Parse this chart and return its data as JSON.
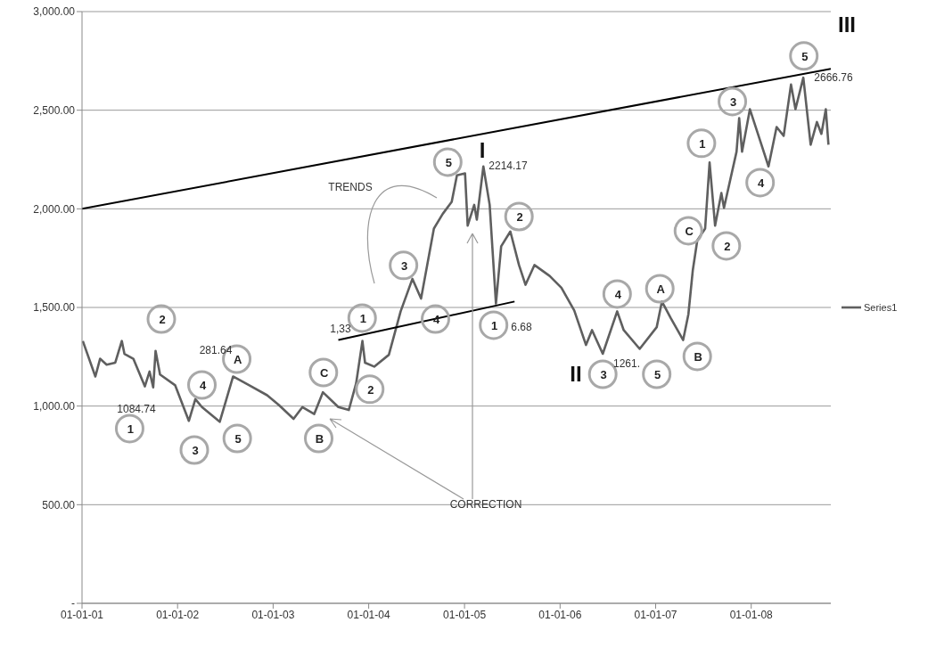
{
  "chart_data": {
    "type": "line",
    "xlim": [
      "2001-01-01",
      "2008-10-31"
    ],
    "ylim": [
      0,
      3000
    ],
    "xticks": [
      {
        "value": "2001-01-01",
        "label": "01-01-01"
      },
      {
        "value": "2002-01-01",
        "label": "01-01-02"
      },
      {
        "value": "2003-01-01",
        "label": "01-01-03"
      },
      {
        "value": "2004-01-01",
        "label": "01-01-04"
      },
      {
        "value": "2005-01-01",
        "label": "01-01-05"
      },
      {
        "value": "2006-01-01",
        "label": "01-01-06"
      },
      {
        "value": "2007-01-01",
        "label": "01-01-07"
      },
      {
        "value": "2008-01-01",
        "label": "01-01-08"
      }
    ],
    "yticks": [
      {
        "value": 0,
        "label": "-"
      },
      {
        "value": 500,
        "label": "500.00"
      },
      {
        "value": 1000,
        "label": "1,000.00"
      },
      {
        "value": 1500,
        "label": "1,500.00"
      },
      {
        "value": 2000,
        "label": "2,000.00"
      },
      {
        "value": 2500,
        "label": "2,500.00"
      },
      {
        "value": 3000,
        "label": "3,000.00"
      }
    ],
    "grid": "y",
    "legend": "right",
    "marker": "none",
    "line_style": "solid",
    "series": [
      {
        "name": "Series1",
        "color": "#5f5f5f",
        "x": [
          "2001-01-04",
          "2001-02-21",
          "2001-03-11",
          "2001-04-05",
          "2001-05-08",
          "2001-06-02",
          "2001-06-12",
          "2001-07-16",
          "2001-08-29",
          "2001-09-16",
          "2001-09-30",
          "2001-10-09",
          "2001-10-26",
          "2001-12-23",
          "2002-02-13",
          "2002-03-10",
          "2002-04-04",
          "2002-06-11",
          "2002-08-01",
          "2002-10-02",
          "2002-12-09",
          "2003-01-23",
          "2003-03-20",
          "2003-04-23",
          "2003-06-07",
          "2003-07-10",
          "2003-09-07",
          "2003-10-17",
          "2003-11-14",
          "2003-12-08",
          "2003-12-18",
          "2004-01-22",
          "2004-03-18",
          "2004-05-02",
          "2004-06-16",
          "2004-07-19",
          "2004-09-06",
          "2004-10-10",
          "2004-11-13",
          "2004-12-03",
          "2005-01-03",
          "2005-01-13",
          "2005-02-07",
          "2005-02-17",
          "2005-03-14",
          "2005-04-07",
          "2005-05-01",
          "2005-05-21",
          "2005-06-25",
          "2005-07-28",
          "2005-08-22",
          "2005-09-25",
          "2005-11-22",
          "2006-01-06",
          "2006-02-24",
          "2006-04-10",
          "2006-05-03",
          "2006-06-13",
          "2006-08-07",
          "2006-09-01",
          "2006-11-01",
          "2007-01-05",
          "2007-01-25",
          "2007-02-28",
          "2007-04-16",
          "2007-05-06",
          "2007-05-23",
          "2007-06-09",
          "2007-07-09",
          "2007-07-26",
          "2007-08-16",
          "2007-09-09",
          "2007-09-19",
          "2007-11-06",
          "2007-11-16",
          "2007-11-27",
          "2007-12-27",
          "2008-02-03",
          "2008-03-07",
          "2008-04-07",
          "2008-05-04",
          "2008-06-01",
          "2008-06-18",
          "2008-07-18",
          "2008-08-15",
          "2008-09-08",
          "2008-09-25",
          "2008-10-12",
          "2008-10-22"
        ],
        "values": [
          1330,
          1150,
          1240,
          1210,
          1220,
          1330,
          1265,
          1240,
          1100,
          1175,
          1095,
          1280,
          1160,
          1105,
          925,
          1035,
          995,
          920,
          1150,
          1105,
          1055,
          1005,
          935,
          995,
          960,
          1070,
          995,
          980,
          1115,
          1330,
          1220,
          1200,
          1260,
          1480,
          1645,
          1545,
          1900,
          1975,
          2035,
          2170,
          2180,
          1915,
          2020,
          1945,
          2215,
          2020,
          1520,
          1810,
          1885,
          1715,
          1615,
          1715,
          1660,
          1600,
          1485,
          1310,
          1385,
          1265,
          1480,
          1385,
          1290,
          1400,
          1530,
          1445,
          1335,
          1465,
          1690,
          1840,
          1900,
          2235,
          1915,
          2080,
          2005,
          2290,
          2460,
          2290,
          2505,
          2350,
          2215,
          2415,
          2370,
          2630,
          2505,
          2665,
          2325,
          2440,
          2380,
          2505,
          2325
        ]
      },
      {
        "color": "#000000",
        "x": [
          "2001-01-01",
          "2008-10-31"
        ],
        "values": [
          2000,
          2710
        ]
      },
      {
        "color": "#000000",
        "x": [
          "2003-09-07",
          "2005-07-11"
        ],
        "values": [
          1335,
          1530
        ]
      }
    ],
    "annotations": [
      {
        "text": "1",
        "x": "2001-07-02",
        "y": 886
      },
      {
        "text": "2",
        "x": "2001-10-31",
        "y": 1441
      },
      {
        "text": "3",
        "x": "2002-03-06",
        "y": 777
      },
      {
        "text": "4",
        "x": "2002-04-04",
        "y": 1107
      },
      {
        "text": "A",
        "x": "2002-08-15",
        "y": 1238
      },
      {
        "text": "5",
        "x": "2002-08-17",
        "y": 836
      },
      {
        "text": "C",
        "x": "2003-07-12",
        "y": 1170
      },
      {
        "text": "B",
        "x": "2003-06-24",
        "y": 836
      },
      {
        "text": "1",
        "x": "2003-12-07",
        "y": 1446
      },
      {
        "text": "2",
        "x": "2004-01-05",
        "y": 1085
      },
      {
        "text": "3",
        "x": "2004-05-13",
        "y": 1713
      },
      {
        "text": "4",
        "x": "2004-09-12",
        "y": 1441
      },
      {
        "text": "5",
        "x": "2004-10-29",
        "y": 2237
      },
      {
        "text": "1",
        "x": "2005-04-22",
        "y": 1410
      },
      {
        "text": "2",
        "x": "2005-07-28",
        "y": 1961
      },
      {
        "text": "3",
        "x": "2006-06-13",
        "y": 1161
      },
      {
        "text": "4",
        "x": "2006-08-07",
        "y": 1568
      },
      {
        "text": "5",
        "x": "2007-01-05",
        "y": 1161
      },
      {
        "text": "A",
        "x": "2007-01-17",
        "y": 1595
      },
      {
        "text": "B",
        "x": "2007-06-09",
        "y": 1252
      },
      {
        "text": "C",
        "x": "2007-05-06",
        "y": 1889
      },
      {
        "text": "1",
        "x": "2007-06-25",
        "y": 2332
      },
      {
        "text": "2",
        "x": "2007-09-28",
        "y": 1812
      },
      {
        "text": "3",
        "x": "2007-10-21",
        "y": 2544
      },
      {
        "text": "4",
        "x": "2008-02-04",
        "y": 2133
      },
      {
        "text": "5",
        "x": "2008-07-20",
        "y": 2775
      },
      "I",
      "II",
      "III",
      "1084.74",
      "281.64",
      "1,33",
      "2214.17",
      "6.68",
      "1261.",
      "2666.76",
      "TRENDS",
      "CORRECTION"
    ]
  }
}
